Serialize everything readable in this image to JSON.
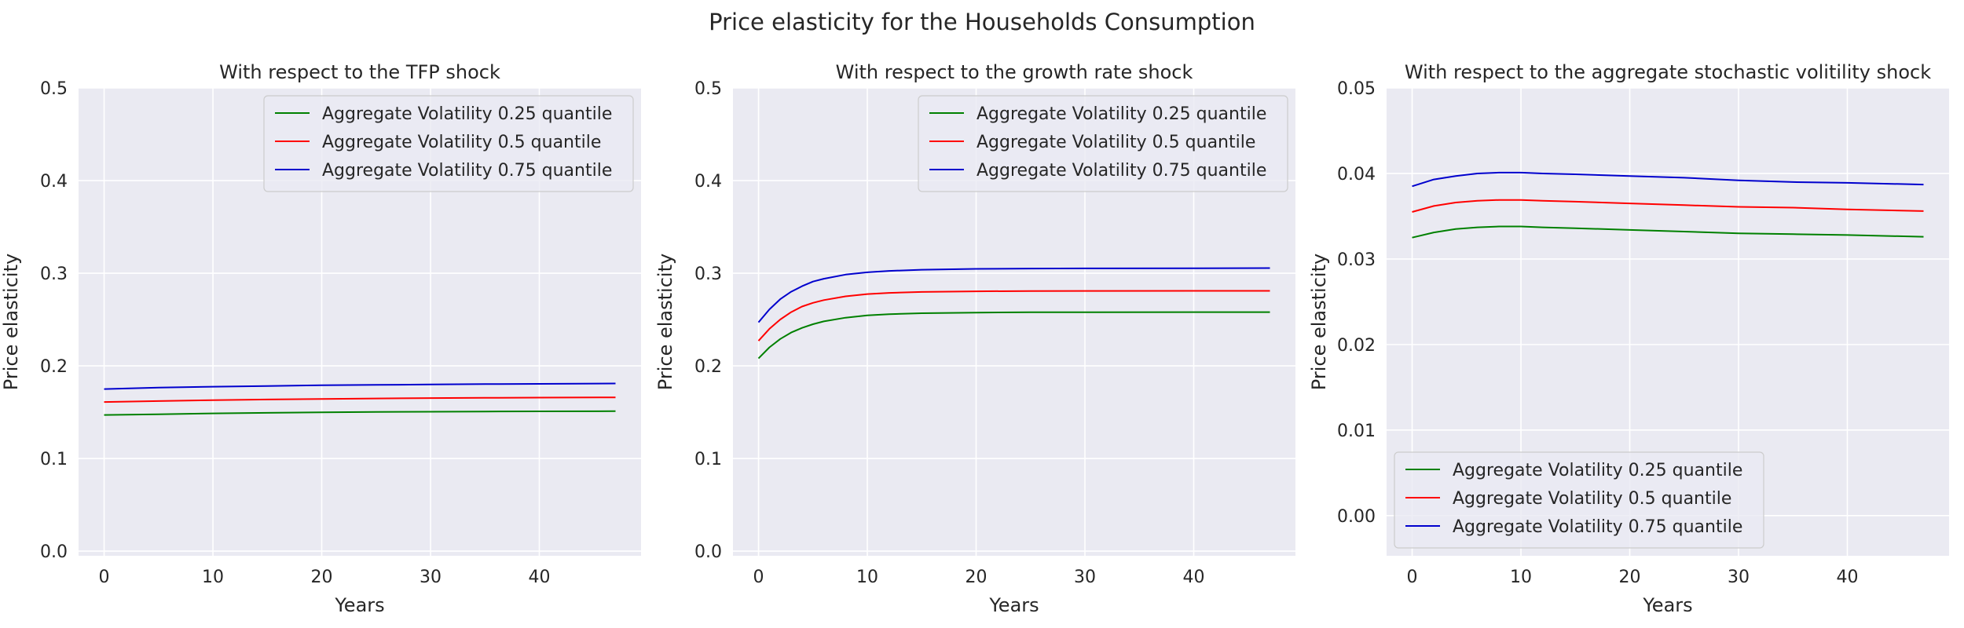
{
  "suptitle": "Price elasticity for the Households Consumption",
  "colors": {
    "background": "#eaeaf2",
    "grid": "#ffffff",
    "series": [
      "#008000",
      "#ff0000",
      "#0000cd"
    ]
  },
  "chart_data": [
    {
      "type": "line",
      "title": "With respect to the TFP shock",
      "xlabel": "Years",
      "ylabel": "Price elasticity",
      "xlim": [
        -2.35,
        49.35
      ],
      "ylim": [
        -0.005,
        0.5
      ],
      "xticks": [
        0,
        10,
        20,
        30,
        40
      ],
      "xtick_labels": [
        "0",
        "10",
        "20",
        "30",
        "40"
      ],
      "yticks": [
        0.0,
        0.1,
        0.2,
        0.3,
        0.4,
        0.5
      ],
      "ytick_labels": [
        "0.0",
        "0.1",
        "0.2",
        "0.3",
        "0.4",
        "0.5"
      ],
      "grid": true,
      "legend": "top-right",
      "x": [
        0,
        5,
        10,
        15,
        20,
        25,
        30,
        35,
        40,
        47
      ],
      "series": [
        {
          "name": "Aggregate Volatility 0.25 quantile",
          "values": [
            0.147,
            0.1478,
            0.1487,
            0.1493,
            0.1498,
            0.1502,
            0.1505,
            0.1507,
            0.1509,
            0.1511
          ]
        },
        {
          "name": "Aggregate Volatility 0.5 quantile",
          "values": [
            0.161,
            0.162,
            0.163,
            0.1637,
            0.1643,
            0.1648,
            0.1652,
            0.1655,
            0.1657,
            0.166
          ]
        },
        {
          "name": "Aggregate Volatility 0.75 quantile",
          "values": [
            0.175,
            0.1765,
            0.1775,
            0.1783,
            0.179,
            0.1795,
            0.1799,
            0.1803,
            0.1806,
            0.181
          ]
        }
      ]
    },
    {
      "type": "line",
      "title": "With respect to the growth rate shock",
      "xlabel": "Years",
      "ylabel": "Price elasticity",
      "xlim": [
        -2.35,
        49.35
      ],
      "ylim": [
        -0.005,
        0.5
      ],
      "xticks": [
        0,
        10,
        20,
        30,
        40
      ],
      "xtick_labels": [
        "0",
        "10",
        "20",
        "30",
        "40"
      ],
      "yticks": [
        0.0,
        0.1,
        0.2,
        0.3,
        0.4,
        0.5
      ],
      "ytick_labels": [
        "0.0",
        "0.1",
        "0.2",
        "0.3",
        "0.4",
        "0.5"
      ],
      "grid": true,
      "legend": "top-right",
      "x": [
        0,
        1,
        2,
        3,
        4,
        5,
        6,
        8,
        10,
        12,
        15,
        20,
        25,
        30,
        40,
        47
      ],
      "series": [
        {
          "name": "Aggregate Volatility 0.25 quantile",
          "values": [
            0.208,
            0.22,
            0.229,
            0.236,
            0.241,
            0.245,
            0.248,
            0.252,
            0.2545,
            0.2558,
            0.2568,
            0.2575,
            0.2578,
            0.2579,
            0.258,
            0.258
          ]
        },
        {
          "name": "Aggregate Volatility 0.5 quantile",
          "values": [
            0.227,
            0.24,
            0.25,
            0.258,
            0.264,
            0.268,
            0.271,
            0.275,
            0.2775,
            0.2788,
            0.2798,
            0.2805,
            0.2808,
            0.2809,
            0.281,
            0.281
          ]
        },
        {
          "name": "Aggregate Volatility 0.75 quantile",
          "values": [
            0.247,
            0.261,
            0.272,
            0.28,
            0.286,
            0.291,
            0.294,
            0.2985,
            0.301,
            0.3025,
            0.3038,
            0.3047,
            0.305,
            0.3052,
            0.3054,
            0.3055
          ]
        }
      ]
    },
    {
      "type": "line",
      "title": "With respect to the aggregate stochastic volitility shock",
      "xlabel": "Years",
      "ylabel": "Price elasticity",
      "xlim": [
        -2.35,
        49.35
      ],
      "ylim": [
        -0.0047,
        0.05
      ],
      "xticks": [
        0,
        10,
        20,
        30,
        40
      ],
      "xtick_labels": [
        "0",
        "10",
        "20",
        "30",
        "40"
      ],
      "yticks": [
        0.0,
        0.01,
        0.02,
        0.03,
        0.04,
        0.05
      ],
      "ytick_labels": [
        "0.00",
        "0.01",
        "0.02",
        "0.03",
        "0.04",
        "0.05"
      ],
      "grid": true,
      "legend": "bottom-left",
      "x": [
        0,
        2,
        4,
        6,
        8,
        10,
        12,
        15,
        20,
        25,
        30,
        35,
        40,
        47
      ],
      "series": [
        {
          "name": "Aggregate Volatility 0.25 quantile",
          "values": [
            0.0325,
            0.0331,
            0.0335,
            0.0337,
            0.0338,
            0.0338,
            0.0337,
            0.0336,
            0.0334,
            0.0332,
            0.033,
            0.0329,
            0.0328,
            0.0326
          ]
        },
        {
          "name": "Aggregate Volatility 0.5 quantile",
          "values": [
            0.0355,
            0.0362,
            0.0366,
            0.0368,
            0.0369,
            0.0369,
            0.0368,
            0.0367,
            0.0365,
            0.0363,
            0.0361,
            0.036,
            0.0358,
            0.0356
          ]
        },
        {
          "name": "Aggregate Volatility 0.75 quantile",
          "values": [
            0.0385,
            0.0393,
            0.0397,
            0.04,
            0.0401,
            0.0401,
            0.04,
            0.0399,
            0.0397,
            0.0395,
            0.0392,
            0.039,
            0.0389,
            0.0387
          ]
        }
      ]
    }
  ]
}
